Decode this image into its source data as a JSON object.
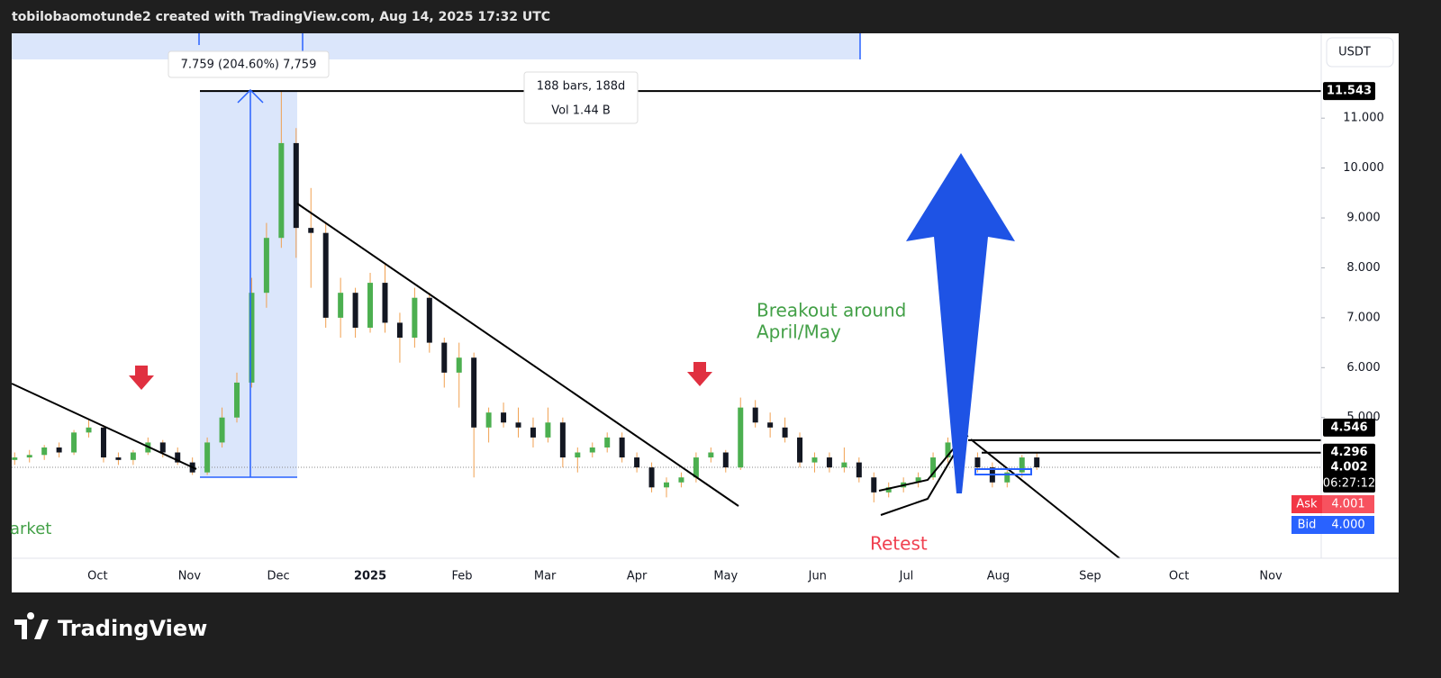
{
  "header": {
    "text": "tobilobaomotunde2 created with TradingView.com, Aug 14, 2025 17:32 UTC"
  },
  "chart_data": {
    "type": "candlestick",
    "currency": "USDT",
    "x": [
      2,
      7,
      12,
      17,
      22,
      27,
      32,
      37,
      42,
      47,
      52,
      57,
      62,
      67,
      72,
      77,
      82,
      87,
      92,
      97,
      102,
      107,
      112,
      117,
      122,
      127,
      132,
      137,
      142,
      147,
      152,
      157,
      162,
      167,
      172,
      177,
      182,
      187,
      192,
      197,
      202,
      207,
      212,
      217,
      222,
      227,
      232,
      237,
      242,
      247,
      252,
      257,
      262,
      267,
      272,
      277,
      282,
      287,
      292,
      297,
      302,
      307,
      312,
      317,
      322,
      327,
      332,
      337,
      342,
      347
    ],
    "open": [
      4.15,
      4.2,
      4.25,
      4.4,
      4.3,
      4.7,
      4.8,
      4.2,
      4.15,
      4.3,
      4.5,
      4.3,
      4.1,
      3.9,
      4.5,
      5.0,
      5.7,
      7.5,
      8.6,
      10.5,
      8.8,
      8.7,
      7.0,
      7.5,
      6.8,
      7.7,
      6.9,
      6.6,
      7.4,
      6.5,
      5.9,
      6.2,
      4.8,
      5.1,
      4.9,
      4.8,
      4.6,
      4.9,
      4.2,
      4.3,
      4.4,
      4.6,
      4.2,
      4.0,
      3.6,
      3.7,
      3.8,
      4.2,
      4.3,
      4.0,
      5.2,
      4.9,
      4.8,
      4.6,
      4.1,
      4.2,
      4.0,
      4.1,
      3.8,
      3.5,
      3.6,
      3.7,
      3.8,
      4.2,
      4.5,
      4.2,
      4.0,
      3.7,
      3.9,
      4.2
    ],
    "high": [
      4.3,
      4.35,
      4.45,
      4.5,
      4.75,
      4.95,
      4.85,
      4.3,
      4.35,
      4.6,
      4.55,
      4.4,
      4.2,
      4.6,
      5.2,
      5.9,
      7.8,
      8.9,
      11.54,
      10.8,
      9.6,
      8.9,
      7.8,
      7.6,
      7.9,
      8.1,
      7.1,
      7.6,
      7.5,
      6.6,
      6.5,
      6.3,
      5.2,
      5.3,
      5.2,
      5.0,
      5.2,
      5.0,
      4.4,
      4.5,
      4.7,
      4.7,
      4.3,
      4.1,
      3.8,
      3.9,
      4.3,
      4.4,
      4.35,
      5.4,
      5.35,
      5.1,
      5.0,
      4.7,
      4.3,
      4.3,
      4.4,
      4.2,
      3.9,
      3.7,
      3.8,
      3.9,
      4.3,
      4.6,
      4.6,
      4.3,
      4.1,
      3.95,
      4.25,
      4.3
    ],
    "low": [
      4.05,
      4.1,
      4.15,
      4.2,
      4.25,
      4.6,
      4.1,
      4.05,
      4.05,
      4.25,
      4.2,
      4.05,
      3.85,
      3.85,
      4.4,
      4.9,
      5.6,
      7.2,
      8.4,
      8.2,
      7.6,
      6.8,
      6.6,
      6.6,
      6.7,
      6.7,
      6.1,
      6.4,
      6.3,
      5.6,
      5.2,
      3.8,
      4.5,
      4.8,
      4.6,
      4.4,
      4.5,
      4.0,
      3.9,
      4.2,
      4.3,
      4.1,
      3.9,
      3.5,
      3.4,
      3.6,
      3.7,
      4.1,
      3.9,
      3.95,
      4.8,
      4.6,
      4.5,
      4.0,
      3.9,
      3.9,
      3.9,
      3.7,
      3.3,
      3.4,
      3.5,
      3.6,
      3.75,
      4.1,
      4.1,
      3.9,
      3.6,
      3.6,
      3.8,
      3.95
    ],
    "close": [
      4.2,
      4.25,
      4.4,
      4.3,
      4.7,
      4.8,
      4.2,
      4.15,
      4.3,
      4.5,
      4.3,
      4.1,
      3.9,
      4.5,
      5.0,
      5.7,
      7.5,
      8.6,
      10.5,
      8.8,
      8.7,
      7.0,
      7.5,
      6.8,
      7.7,
      6.9,
      6.6,
      7.4,
      6.5,
      5.9,
      6.2,
      4.8,
      5.1,
      4.9,
      4.8,
      4.6,
      4.9,
      4.2,
      4.3,
      4.4,
      4.6,
      4.2,
      4.0,
      3.6,
      3.7,
      3.8,
      4.2,
      4.3,
      4.0,
      5.2,
      4.9,
      4.8,
      4.6,
      4.1,
      4.2,
      4.0,
      4.1,
      3.8,
      3.5,
      3.6,
      3.7,
      3.8,
      4.2,
      4.5,
      4.2,
      4.0,
      3.7,
      3.9,
      4.2,
      4.002
    ],
    "up_color": "#4caf50",
    "down_color": "#131722",
    "wick_color": "#f0a050",
    "xlim": [
      1,
      443
    ],
    "xticks": [
      {
        "value": 30,
        "label": "Oct"
      },
      {
        "value": 61,
        "label": "Nov"
      },
      {
        "value": 91,
        "label": "Dec"
      },
      {
        "value": 122,
        "label": "2025"
      },
      {
        "value": 153,
        "label": "Feb"
      },
      {
        "value": 181,
        "label": "Mar"
      },
      {
        "value": 212,
        "label": "Apr"
      },
      {
        "value": 242,
        "label": "May"
      },
      {
        "value": 273,
        "label": "Jun"
      },
      {
        "value": 303,
        "label": "Jul"
      },
      {
        "value": 334,
        "label": "Aug"
      },
      {
        "value": 365,
        "label": "Sep"
      },
      {
        "value": 395,
        "label": "Oct"
      },
      {
        "value": 426,
        "label": "Nov"
      }
    ],
    "ylim": [
      2.18,
      12.7
    ],
    "yticks": [
      {
        "value": 5,
        "label": "5.000"
      },
      {
        "value": 6,
        "label": "6.000"
      },
      {
        "value": 7,
        "label": "7.000"
      },
      {
        "value": 8,
        "label": "8.000"
      },
      {
        "value": 9,
        "label": "9.000"
      },
      {
        "value": 10,
        "label": "10.000"
      },
      {
        "value": 11,
        "label": "11.000"
      }
    ],
    "levels": [
      11.543,
      4.546,
      4.296
    ],
    "last_price": 4.002,
    "countdown": "06:27:12",
    "ask_label": "Ask",
    "ask": 4.001,
    "bid_label": "Bid",
    "bid": {
      "value": 4,
      "label": "4.000"
    },
    "annotations": {
      "measure": "7.759 (204.60%) 7,759",
      "bars": "188 bars, 188d",
      "volume": "Vol 1.44 B",
      "breakout": [
        "Breakout around",
        "April/May"
      ],
      "retest": "Retest",
      "market": "arket"
    }
  },
  "footer": {
    "logo": "TradingView"
  }
}
